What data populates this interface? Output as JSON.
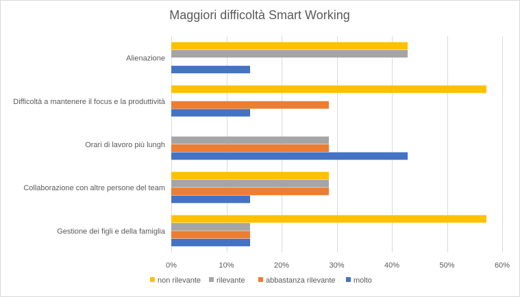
{
  "chart_data": {
    "type": "bar",
    "orientation": "horizontal",
    "title": "Maggiori difficoltà Smart Working",
    "xlabel": "",
    "ylabel": "",
    "categories": [
      "Alienazione",
      "Difficoltà  a mantenere il focus e la produttività",
      "Orari di lavoro più lungh",
      "Collaborazione con altre persone del team",
      "Gestione dei figli e della famiglia"
    ],
    "series": [
      {
        "name": "non rilevante",
        "color": "#FFC000",
        "values": [
          42.86,
          57.14,
          0,
          28.57,
          57.14
        ]
      },
      {
        "name": "rilevante",
        "color": "#A5A5A5",
        "values": [
          42.86,
          0,
          28.57,
          28.57,
          14.29
        ]
      },
      {
        "name": "abbastanza rilevante",
        "color": "#ED7D31",
        "values": [
          0,
          28.57,
          28.57,
          28.57,
          14.29
        ]
      },
      {
        "name": "molto",
        "color": "#4472C4",
        "values": [
          14.29,
          14.29,
          42.86,
          14.29,
          14.29
        ]
      }
    ],
    "xlim": [
      0,
      60
    ],
    "x_ticks": [
      "0%",
      "10%",
      "20%",
      "30%",
      "40%",
      "50%",
      "60%"
    ],
    "grid": true,
    "legend_position": "bottom"
  }
}
